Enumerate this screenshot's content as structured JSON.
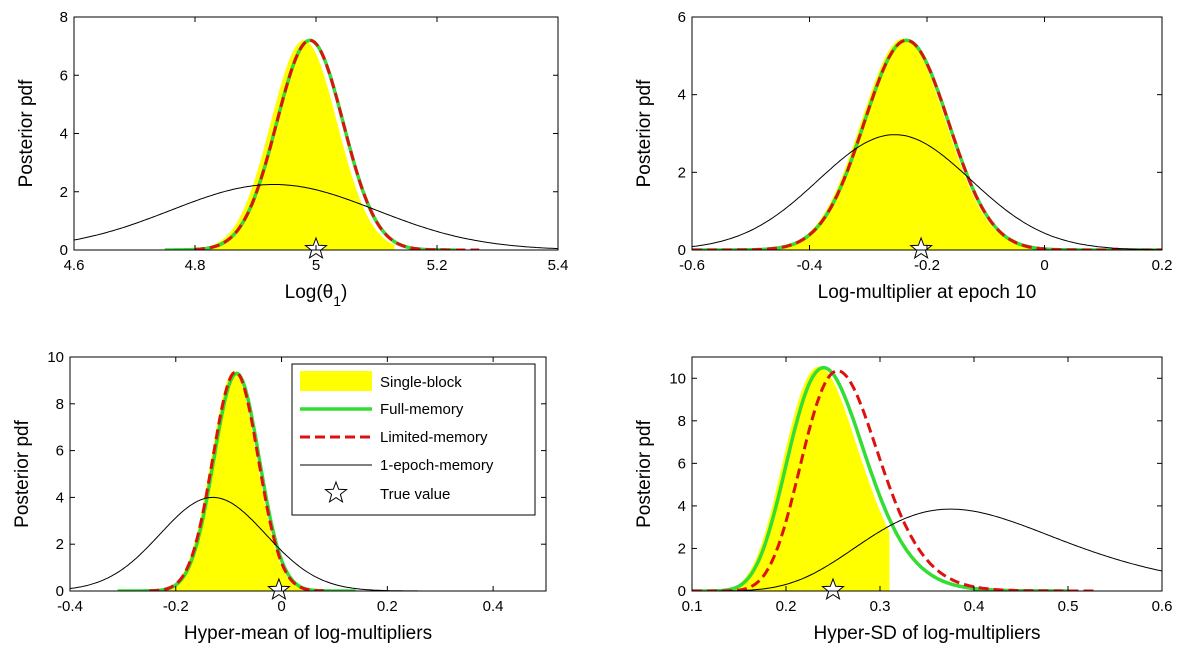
{
  "legend": {
    "entries": [
      {
        "label": "Single-block",
        "style": "fill",
        "color": "#ffff00"
      },
      {
        "label": "Full-memory",
        "style": "line",
        "color": "#33dd33"
      },
      {
        "label": "Limited-memory",
        "style": "dash",
        "color": "#dd1111"
      },
      {
        "label": "1-epoch-memory",
        "style": "thin",
        "color": "#000000"
      },
      {
        "label": "True value",
        "style": "star",
        "color": "#000000"
      }
    ]
  },
  "chart_data": [
    {
      "type": "area",
      "panel": "top-left",
      "xlabel": "Log(θ1)",
      "xlabel_base": "Log(θ",
      "xlabel_sub": "1",
      "xlabel_end": ")",
      "ylabel": "Posterior pdf",
      "xlim": [
        4.6,
        5.4
      ],
      "ylim": [
        0,
        8
      ],
      "xticks": [
        4.6,
        4.8,
        5,
        5.2,
        5.4
      ],
      "xtick_labels": [
        "4.6",
        "4.8",
        "5",
        "5.2",
        "5.4"
      ],
      "yticks": [
        0,
        2,
        4,
        6,
        8
      ],
      "ytick_labels": [
        "0",
        "2",
        "4",
        "6",
        "8"
      ],
      "true_value": 5.0,
      "series": [
        {
          "name": "Single-block",
          "kind": "gaussian",
          "mean": 4.98,
          "sd": 0.055,
          "peak": 7.2,
          "range": [
            4.82,
            5.13
          ]
        },
        {
          "name": "Full-memory",
          "kind": "gaussian",
          "mean": 4.99,
          "sd": 0.055,
          "peak": 7.2,
          "range": [
            4.75,
            5.23
          ]
        },
        {
          "name": "Limited-memory",
          "kind": "gaussian",
          "mean": 4.99,
          "sd": 0.055,
          "peak": 7.2,
          "range": [
            4.8,
            5.27
          ]
        },
        {
          "name": "1-epoch-memory",
          "kind": "gaussian",
          "mean": 4.93,
          "sd": 0.17,
          "peak": 2.25,
          "range": [
            4.6,
            5.4
          ]
        }
      ]
    },
    {
      "type": "area",
      "panel": "top-right",
      "xlabel": "Log-multiplier at epoch 10",
      "ylabel": "Posterior pdf",
      "xlim": [
        -0.6,
        0.2
      ],
      "ylim": [
        0,
        6
      ],
      "xticks": [
        -0.6,
        -0.4,
        -0.2,
        0,
        0.2
      ],
      "xtick_labels": [
        "-0.6",
        "-0.4",
        "-0.2",
        "0",
        "0.2"
      ],
      "yticks": [
        0,
        2,
        4,
        6
      ],
      "ytick_labels": [
        "0",
        "2",
        "4",
        "6"
      ],
      "true_value": -0.21,
      "series": [
        {
          "name": "Single-block",
          "kind": "gaussian",
          "mean": -0.24,
          "sd": 0.072,
          "peak": 5.45,
          "range": [
            -0.6,
            0.2
          ]
        },
        {
          "name": "Full-memory",
          "kind": "gaussian",
          "mean": -0.235,
          "sd": 0.072,
          "peak": 5.4,
          "range": [
            -0.6,
            0.2
          ]
        },
        {
          "name": "Limited-memory",
          "kind": "gaussian",
          "mean": -0.235,
          "sd": 0.072,
          "peak": 5.4,
          "range": [
            -0.6,
            0.2
          ]
        },
        {
          "name": "1-epoch-memory",
          "kind": "gaussian",
          "mean": -0.255,
          "sd": 0.13,
          "peak": 2.97,
          "range": [
            -0.6,
            0.2
          ]
        }
      ]
    },
    {
      "type": "area",
      "panel": "bottom-left",
      "xlabel": "Hyper-mean of log-multipliers",
      "ylabel": "Posterior pdf",
      "xlim": [
        -0.4,
        0.5
      ],
      "ylim": [
        0,
        10
      ],
      "xticks": [
        -0.4,
        -0.2,
        0,
        0.2,
        0.4
      ],
      "xtick_labels": [
        "-0.4",
        "-0.2",
        "0",
        "0.2",
        "0.4"
      ],
      "yticks": [
        0,
        2,
        4,
        6,
        8,
        10
      ],
      "ytick_labels": [
        "0",
        "2",
        "4",
        "6",
        "8",
        "10"
      ],
      "true_value": -0.005,
      "series": [
        {
          "name": "Single-block",
          "kind": "gaussian",
          "mean": -0.09,
          "sd": 0.043,
          "peak": 9.4,
          "range": [
            -0.22,
            0.05
          ]
        },
        {
          "name": "Full-memory",
          "kind": "gaussian",
          "mean": -0.085,
          "sd": 0.043,
          "peak": 9.3,
          "range": [
            -0.31,
            0.14
          ]
        },
        {
          "name": "Limited-memory",
          "kind": "gaussian",
          "mean": -0.087,
          "sd": 0.043,
          "peak": 9.35,
          "range": [
            -0.25,
            0.08
          ]
        },
        {
          "name": "1-epoch-memory",
          "kind": "gaussian",
          "mean": -0.13,
          "sd": 0.1,
          "peak": 4.0,
          "range": [
            -0.4,
            0.29
          ]
        }
      ]
    },
    {
      "type": "area",
      "panel": "bottom-right",
      "xlabel": "Hyper-SD of log-multipliers",
      "ylabel": "Posterior pdf",
      "xlim": [
        0.1,
        0.6
      ],
      "ylim": [
        0,
        11
      ],
      "xticks": [
        0.1,
        0.2,
        0.3,
        0.4,
        0.5,
        0.6
      ],
      "xtick_labels": [
        "0.1",
        "0.2",
        "0.3",
        "0.4",
        "0.5",
        "0.6"
      ],
      "yticks": [
        0,
        2,
        4,
        6,
        8,
        10
      ],
      "ytick_labels": [
        "0",
        "2",
        "4",
        "6",
        "8",
        "10"
      ],
      "true_value": 0.25,
      "series": [
        {
          "name": "Single-block",
          "kind": "lognormal",
          "mode": 0.235,
          "sigma": 0.17,
          "peak": 10.55,
          "range": [
            0.1,
            0.31
          ]
        },
        {
          "name": "Full-memory",
          "kind": "lognormal",
          "mode": 0.24,
          "sigma": 0.17,
          "peak": 10.5,
          "range": [
            0.1,
            0.5
          ]
        },
        {
          "name": "Limited-memory",
          "kind": "lognormal",
          "mode": 0.255,
          "sigma": 0.16,
          "peak": 10.35,
          "range": [
            0.1,
            0.53
          ]
        },
        {
          "name": "1-epoch-memory",
          "kind": "lognormal",
          "mode": 0.375,
          "sigma": 0.28,
          "peak": 3.85,
          "range": [
            0.1,
            0.6
          ]
        }
      ]
    }
  ]
}
